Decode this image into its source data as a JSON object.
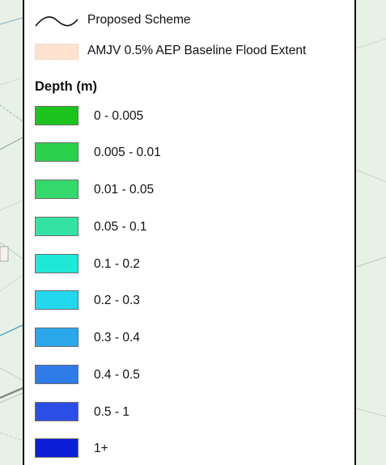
{
  "legend": {
    "proposed_scheme_label": "Proposed Scheme",
    "baseline_extent_label": "AMJV 0.5% AEP Baseline Flood Extent",
    "baseline_extent_color": "#fde3cf",
    "depth_title": "Depth (m)",
    "depth_classes": [
      {
        "label": "0 - 0.005",
        "color": "#1dc41d"
      },
      {
        "label": "0.005 - 0.01",
        "color": "#2cd04b"
      },
      {
        "label": "0.01 - 0.05",
        "color": "#34d96c"
      },
      {
        "label": "0.05 - 0.1",
        "color": "#33e3a4"
      },
      {
        "label": "0.1 - 0.2",
        "color": "#20e8d9"
      },
      {
        "label": "0.2 - 0.3",
        "color": "#22d6ee"
      },
      {
        "label": "0.3 - 0.4",
        "color": "#2aa7ea"
      },
      {
        "label": "0.4 - 0.5",
        "color": "#2f7be8"
      },
      {
        "label": "0.5 - 1",
        "color": "#2b4fe6"
      },
      {
        "label": "1+",
        "color": "#0b1ed6"
      }
    ]
  }
}
